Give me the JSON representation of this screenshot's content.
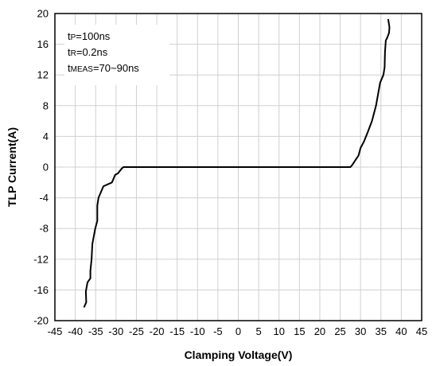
{
  "chart_data": {
    "type": "line",
    "xlabel": "Clamping Voltage(V)",
    "ylabel": "TLP Current(A)",
    "xlim": [
      -45,
      45
    ],
    "ylim": [
      -20,
      20
    ],
    "xticks": [
      -45,
      -40,
      -35,
      -30,
      -25,
      -20,
      -15,
      -10,
      -5,
      0,
      5,
      10,
      15,
      20,
      25,
      30,
      35,
      40,
      45
    ],
    "yticks": [
      20,
      16,
      12,
      8,
      4,
      0,
      -4,
      -8,
      -12,
      -16,
      -20
    ],
    "grid": true,
    "annotations": [
      {
        "main": "t",
        "sub": "P",
        "rest": "=100ns"
      },
      {
        "main": "t",
        "sub": "R",
        "rest": "=0.2ns"
      },
      {
        "main": "t",
        "sub": "MEAS",
        "rest": "=70~90ns"
      }
    ],
    "series": [
      {
        "color": "#000000",
        "x": [
          -37.8,
          -37.3,
          -37.4,
          -37.0,
          -36.3,
          -36.3,
          -36.0,
          -35.8,
          -35.1,
          -34.6,
          -34.6,
          -34.3,
          -33.5,
          -33.1,
          -31.0,
          -30.2,
          -29.5,
          -29.2,
          -28.6,
          -28.2,
          -27.5,
          0,
          27.5,
          28.0,
          28.6,
          29.5,
          30.0,
          30.8,
          31.8,
          32.8,
          33.8,
          34.3,
          34.8,
          35.6,
          35.9,
          36.0,
          36.2,
          36.5,
          37.0,
          37.1,
          36.8
        ],
        "y": [
          -18.2,
          -17.6,
          -16.2,
          -15.0,
          -14.5,
          -13.5,
          -12.0,
          -10.0,
          -8.0,
          -7.0,
          -5.0,
          -4.0,
          -3.0,
          -2.5,
          -2.0,
          -1.0,
          -0.8,
          -0.6,
          -0.2,
          0.0,
          0.0,
          0.0,
          0.0,
          0.3,
          0.8,
          1.5,
          2.5,
          3.3,
          4.6,
          6.0,
          8.0,
          9.5,
          11.0,
          12.0,
          13.0,
          15.0,
          16.5,
          16.8,
          17.5,
          18.2,
          19.2
        ]
      }
    ]
  }
}
